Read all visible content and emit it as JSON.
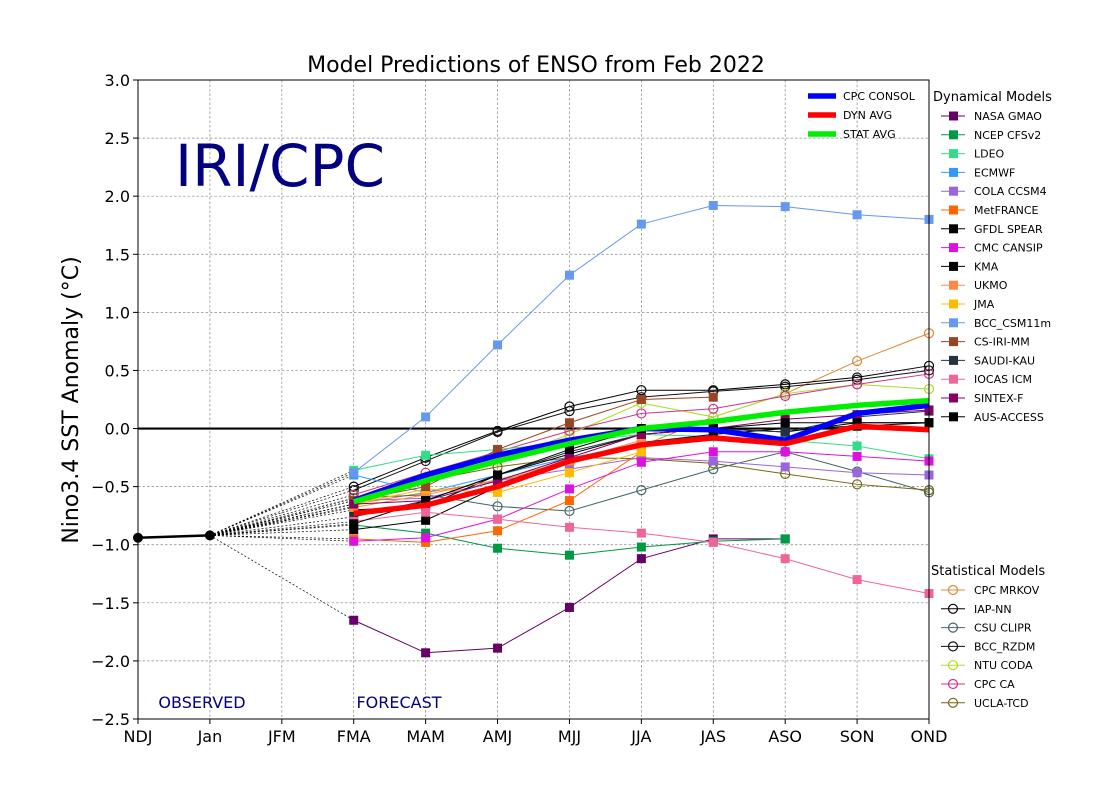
{
  "chart_data": {
    "type": "line",
    "title": "Model Predictions of ENSO from Feb 2022",
    "ylabel": "Nino3.4 SST Anomaly (°C)",
    "xlabel": "",
    "watermark": "IRI/CPC",
    "observed_label": "OBSERVED",
    "forecast_label": "FORECAST",
    "categories": [
      "NDJ",
      "Jan",
      "JFM",
      "FMA",
      "MAM",
      "AMJ",
      "MJJ",
      "JJA",
      "JAS",
      "ASO",
      "SON",
      "OND"
    ],
    "ylim": [
      -2.5,
      3.0
    ],
    "yticks": [
      -2.5,
      -2.0,
      -1.5,
      -1.0,
      -0.5,
      0.0,
      0.5,
      1.0,
      1.5,
      2.0,
      2.5,
      3.0
    ],
    "ytick_labels": [
      "−2.5",
      "−2.0",
      "−1.5",
      "−1.0",
      "−0.5",
      "0.0",
      "0.5",
      "1.0",
      "1.5",
      "2.0",
      "2.5",
      "3.0"
    ],
    "grid": true,
    "observed": {
      "x": [
        "NDJ",
        "Jan"
      ],
      "values": [
        -0.94,
        -0.92
      ],
      "color": "#000000"
    },
    "averages": [
      {
        "name": "CPC CONSOL",
        "color": "#0000ff",
        "start": 3,
        "values": [
          -0.62,
          -0.4,
          -0.23,
          -0.1,
          0.0,
          -0.01,
          -0.1,
          0.13,
          0.2
        ]
      },
      {
        "name": "DYN AVG",
        "color": "#ff0000",
        "start": 3,
        "values": [
          -0.73,
          -0.66,
          -0.5,
          -0.28,
          -0.14,
          -0.08,
          -0.13,
          0.02,
          -0.01
        ]
      },
      {
        "name": "STAT AVG",
        "color": "#00ee00",
        "start": 3,
        "values": [
          -0.63,
          -0.45,
          -0.28,
          -0.13,
          0.0,
          0.06,
          0.14,
          0.2,
          0.24
        ]
      }
    ],
    "dynamical_title": "Dynamical Models",
    "dynamical": [
      {
        "name": "NASA GMAO",
        "color": "#660066",
        "start": 3,
        "values": [
          -1.65,
          -1.93,
          -1.89,
          -1.54,
          -1.12,
          -0.95,
          -0.95
        ]
      },
      {
        "name": "NCEP CFSv2",
        "color": "#009944",
        "start": 3,
        "values": [
          -0.83,
          -0.9,
          -1.03,
          -1.09,
          -1.02,
          -0.97,
          -0.95
        ]
      },
      {
        "name": "LDEO",
        "color": "#33dd88",
        "start": 3,
        "values": [
          -0.36,
          -0.23,
          -0.18,
          -0.12,
          -0.05,
          -0.07,
          -0.1,
          -0.15,
          -0.26
        ]
      },
      {
        "name": "ECMWF",
        "color": "#3399ff",
        "start": 3,
        "values": [
          -0.4,
          -0.55,
          -0.4,
          -0.25,
          -0.15
        ]
      },
      {
        "name": "COLA CCSM4",
        "color": "#9966dd",
        "start": 3,
        "values": [
          -0.62,
          -0.6,
          -0.45,
          -0.35,
          -0.25,
          -0.28,
          -0.33,
          -0.38,
          -0.4
        ]
      },
      {
        "name": "MetFRANCE",
        "color": "#ff6600",
        "start": 3,
        "values": [
          -0.95,
          -0.98,
          -0.88,
          -0.62,
          -0.2
        ]
      },
      {
        "name": "GFDL SPEAR",
        "color": "#000000",
        "start": 3,
        "values": [
          -0.7,
          -0.67,
          -0.4,
          -0.22,
          -0.05,
          0.0,
          -0.03,
          0.05,
          0.05
        ]
      },
      {
        "name": "CMC CANSIP",
        "color": "#dd11dd",
        "start": 3,
        "values": [
          -0.97,
          -0.94,
          -0.78,
          -0.52,
          -0.29,
          -0.2,
          -0.2,
          -0.24,
          -0.28
        ]
      },
      {
        "name": "KMA",
        "color": "#000000",
        "start": 3,
        "values": [
          -0.87,
          -0.79,
          -0.5,
          -0.28,
          -0.12,
          -0.05,
          0.0,
          0.02,
          0.05
        ]
      },
      {
        "name": "UKMO",
        "color": "#ff8844",
        "start": 3,
        "values": [
          -0.68,
          -0.57,
          -0.44,
          -0.28,
          -0.1
        ]
      },
      {
        "name": "JMA",
        "color": "#ffbb00",
        "start": 3,
        "values": [
          -0.65,
          -0.52,
          -0.55,
          -0.38,
          -0.2
        ]
      },
      {
        "name": "BCC_CSM11m",
        "color": "#6699ee",
        "start": 3,
        "values": [
          -0.38,
          0.1,
          0.72,
          1.32,
          1.76,
          1.92,
          1.91,
          1.84,
          1.8
        ]
      },
      {
        "name": "CS-IRI-MM",
        "color": "#994422",
        "start": 3,
        "values": [
          -0.62,
          -0.5,
          -0.18,
          0.05,
          0.25,
          0.27
        ]
      },
      {
        "name": "SAUDI-KAU",
        "color": "#223344",
        "start": 3,
        "values": [
          -0.76,
          -0.62,
          -0.4,
          -0.2,
          -0.05,
          0.0,
          -0.03,
          0.1,
          0.15
        ]
      },
      {
        "name": "IOCAS ICM",
        "color": "#ee6699",
        "start": 3,
        "values": [
          -0.8,
          -0.72,
          -0.78,
          -0.85,
          -0.9,
          -0.98,
          -1.12,
          -1.3,
          -1.42
        ]
      },
      {
        "name": "SINTEX-F",
        "color": "#880066",
        "start": 3,
        "values": [
          -0.65,
          -0.62,
          -0.45,
          -0.25,
          -0.05,
          0.0,
          0.08,
          0.12,
          0.16
        ]
      },
      {
        "name": "AUS-ACCESS",
        "color": "#000000",
        "start": 3,
        "values": [
          -0.82,
          -0.62,
          -0.4,
          -0.18,
          0.0,
          0.0,
          0.05,
          0.05,
          0.05
        ]
      }
    ],
    "statistical_title": "Statistical Models",
    "statistical": [
      {
        "name": "CPC MRKOV",
        "color": "#dd8833",
        "start": 3,
        "values": [
          -0.65,
          -0.55,
          -0.45,
          -0.3,
          -0.15,
          0.1,
          0.3,
          0.58,
          0.82
        ]
      },
      {
        "name": "IAP-NN",
        "color": "#000000",
        "start": 3,
        "values": [
          -0.5,
          -0.25,
          -0.02,
          0.19,
          0.33,
          0.33,
          0.38,
          0.44,
          0.54
        ]
      },
      {
        "name": "CSU CLIPR",
        "color": "#446666",
        "start": 3,
        "values": [
          -0.6,
          -0.57,
          -0.67,
          -0.71,
          -0.53,
          -0.35,
          -0.2,
          -0.37,
          -0.55
        ]
      },
      {
        "name": "BCC_RZDM",
        "color": "#111111",
        "start": 3,
        "values": [
          -0.53,
          -0.28,
          -0.03,
          0.15,
          0.27,
          0.32,
          0.36,
          0.42,
          0.5
        ]
      },
      {
        "name": "NTU CODA",
        "color": "#aadd22",
        "start": 3,
        "values": [
          -0.67,
          -0.45,
          -0.28,
          -0.05,
          0.22,
          0.1,
          0.3,
          0.38,
          0.34
        ]
      },
      {
        "name": "CPC CA",
        "color": "#cc3388",
        "start": 3,
        "values": [
          -0.57,
          -0.38,
          -0.2,
          -0.02,
          0.13,
          0.17,
          0.28,
          0.38,
          0.47
        ]
      },
      {
        "name": "UCLA-TCD",
        "color": "#776611",
        "start": 3,
        "values": [
          -0.6,
          -0.45,
          -0.33,
          -0.25,
          -0.26,
          -0.3,
          -0.39,
          -0.48,
          -0.53
        ]
      }
    ]
  }
}
